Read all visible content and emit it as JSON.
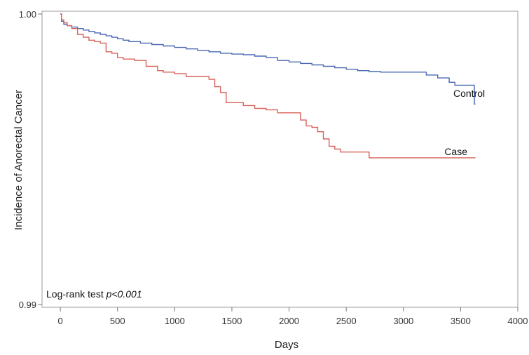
{
  "chart_data": {
    "type": "line",
    "xlabel": "Days",
    "ylabel": "Incidence of Anorectal Cancer",
    "xlim": [
      -160,
      4000
    ],
    "ylim": [
      0.99,
      1.0
    ],
    "x_ticks": [
      0,
      500,
      1000,
      1500,
      2000,
      2500,
      3000,
      3500,
      4000
    ],
    "y_ticks": [
      {
        "value": 0.99,
        "label": "0.99"
      },
      {
        "value": 1.0,
        "label": "1.00"
      }
    ],
    "annotation": {
      "prefix": "Log-rank test ",
      "italic": "p<0.001"
    },
    "grid": false,
    "series": [
      {
        "name": "Control",
        "color": "#4a69b3",
        "x": [
          0,
          10,
          30,
          60,
          100,
          150,
          200,
          250,
          300,
          350,
          400,
          450,
          500,
          550,
          600,
          700,
          800,
          900,
          1000,
          1100,
          1200,
          1300,
          1400,
          1500,
          1600,
          1700,
          1800,
          1900,
          2000,
          2100,
          2200,
          2300,
          2400,
          2500,
          2600,
          2700,
          2800,
          2900,
          3000,
          3100,
          3200,
          3300,
          3400,
          3450,
          3500,
          3550,
          3620,
          3630
        ],
        "y": [
          1.0,
          0.99975,
          0.99965,
          0.9996,
          0.99955,
          0.9995,
          0.99945,
          0.9994,
          0.99935,
          0.9993,
          0.99925,
          0.9992,
          0.99915,
          0.9991,
          0.99905,
          0.999,
          0.99895,
          0.9989,
          0.99885,
          0.9988,
          0.99875,
          0.9987,
          0.99865,
          0.99862,
          0.9986,
          0.99855,
          0.9985,
          0.9984,
          0.99835,
          0.9983,
          0.99825,
          0.9982,
          0.99815,
          0.9981,
          0.99805,
          0.99802,
          0.998,
          0.998,
          0.998,
          0.998,
          0.9979,
          0.9978,
          0.99765,
          0.99755,
          0.99755,
          0.99755,
          0.9969,
          0.9969
        ]
      },
      {
        "name": "Case",
        "color": "#d9625a",
        "x": [
          0,
          10,
          30,
          60,
          100,
          150,
          200,
          250,
          300,
          350,
          400,
          450,
          500,
          550,
          650,
          750,
          850,
          900,
          1000,
          1100,
          1200,
          1300,
          1350,
          1400,
          1450,
          1500,
          1600,
          1700,
          1800,
          1900,
          2000,
          2100,
          2150,
          2200,
          2250,
          2300,
          2350,
          2400,
          2450,
          2500,
          2600,
          2700,
          2800,
          3000,
          3200,
          3400,
          3630
        ],
        "y": [
          1.0,
          0.9998,
          0.9997,
          0.9996,
          0.9995,
          0.9993,
          0.9992,
          0.9991,
          0.99905,
          0.999,
          0.9987,
          0.99865,
          0.9985,
          0.99845,
          0.9984,
          0.9982,
          0.99805,
          0.998,
          0.99795,
          0.99785,
          0.99785,
          0.99775,
          0.9975,
          0.9973,
          0.99695,
          0.99695,
          0.99685,
          0.99675,
          0.9967,
          0.9966,
          0.9966,
          0.99635,
          0.99615,
          0.9961,
          0.99595,
          0.9957,
          0.99545,
          0.99535,
          0.99525,
          0.99525,
          0.99525,
          0.99505,
          0.99505,
          0.99505,
          0.99505,
          0.99505,
          0.99505
        ]
      }
    ]
  }
}
